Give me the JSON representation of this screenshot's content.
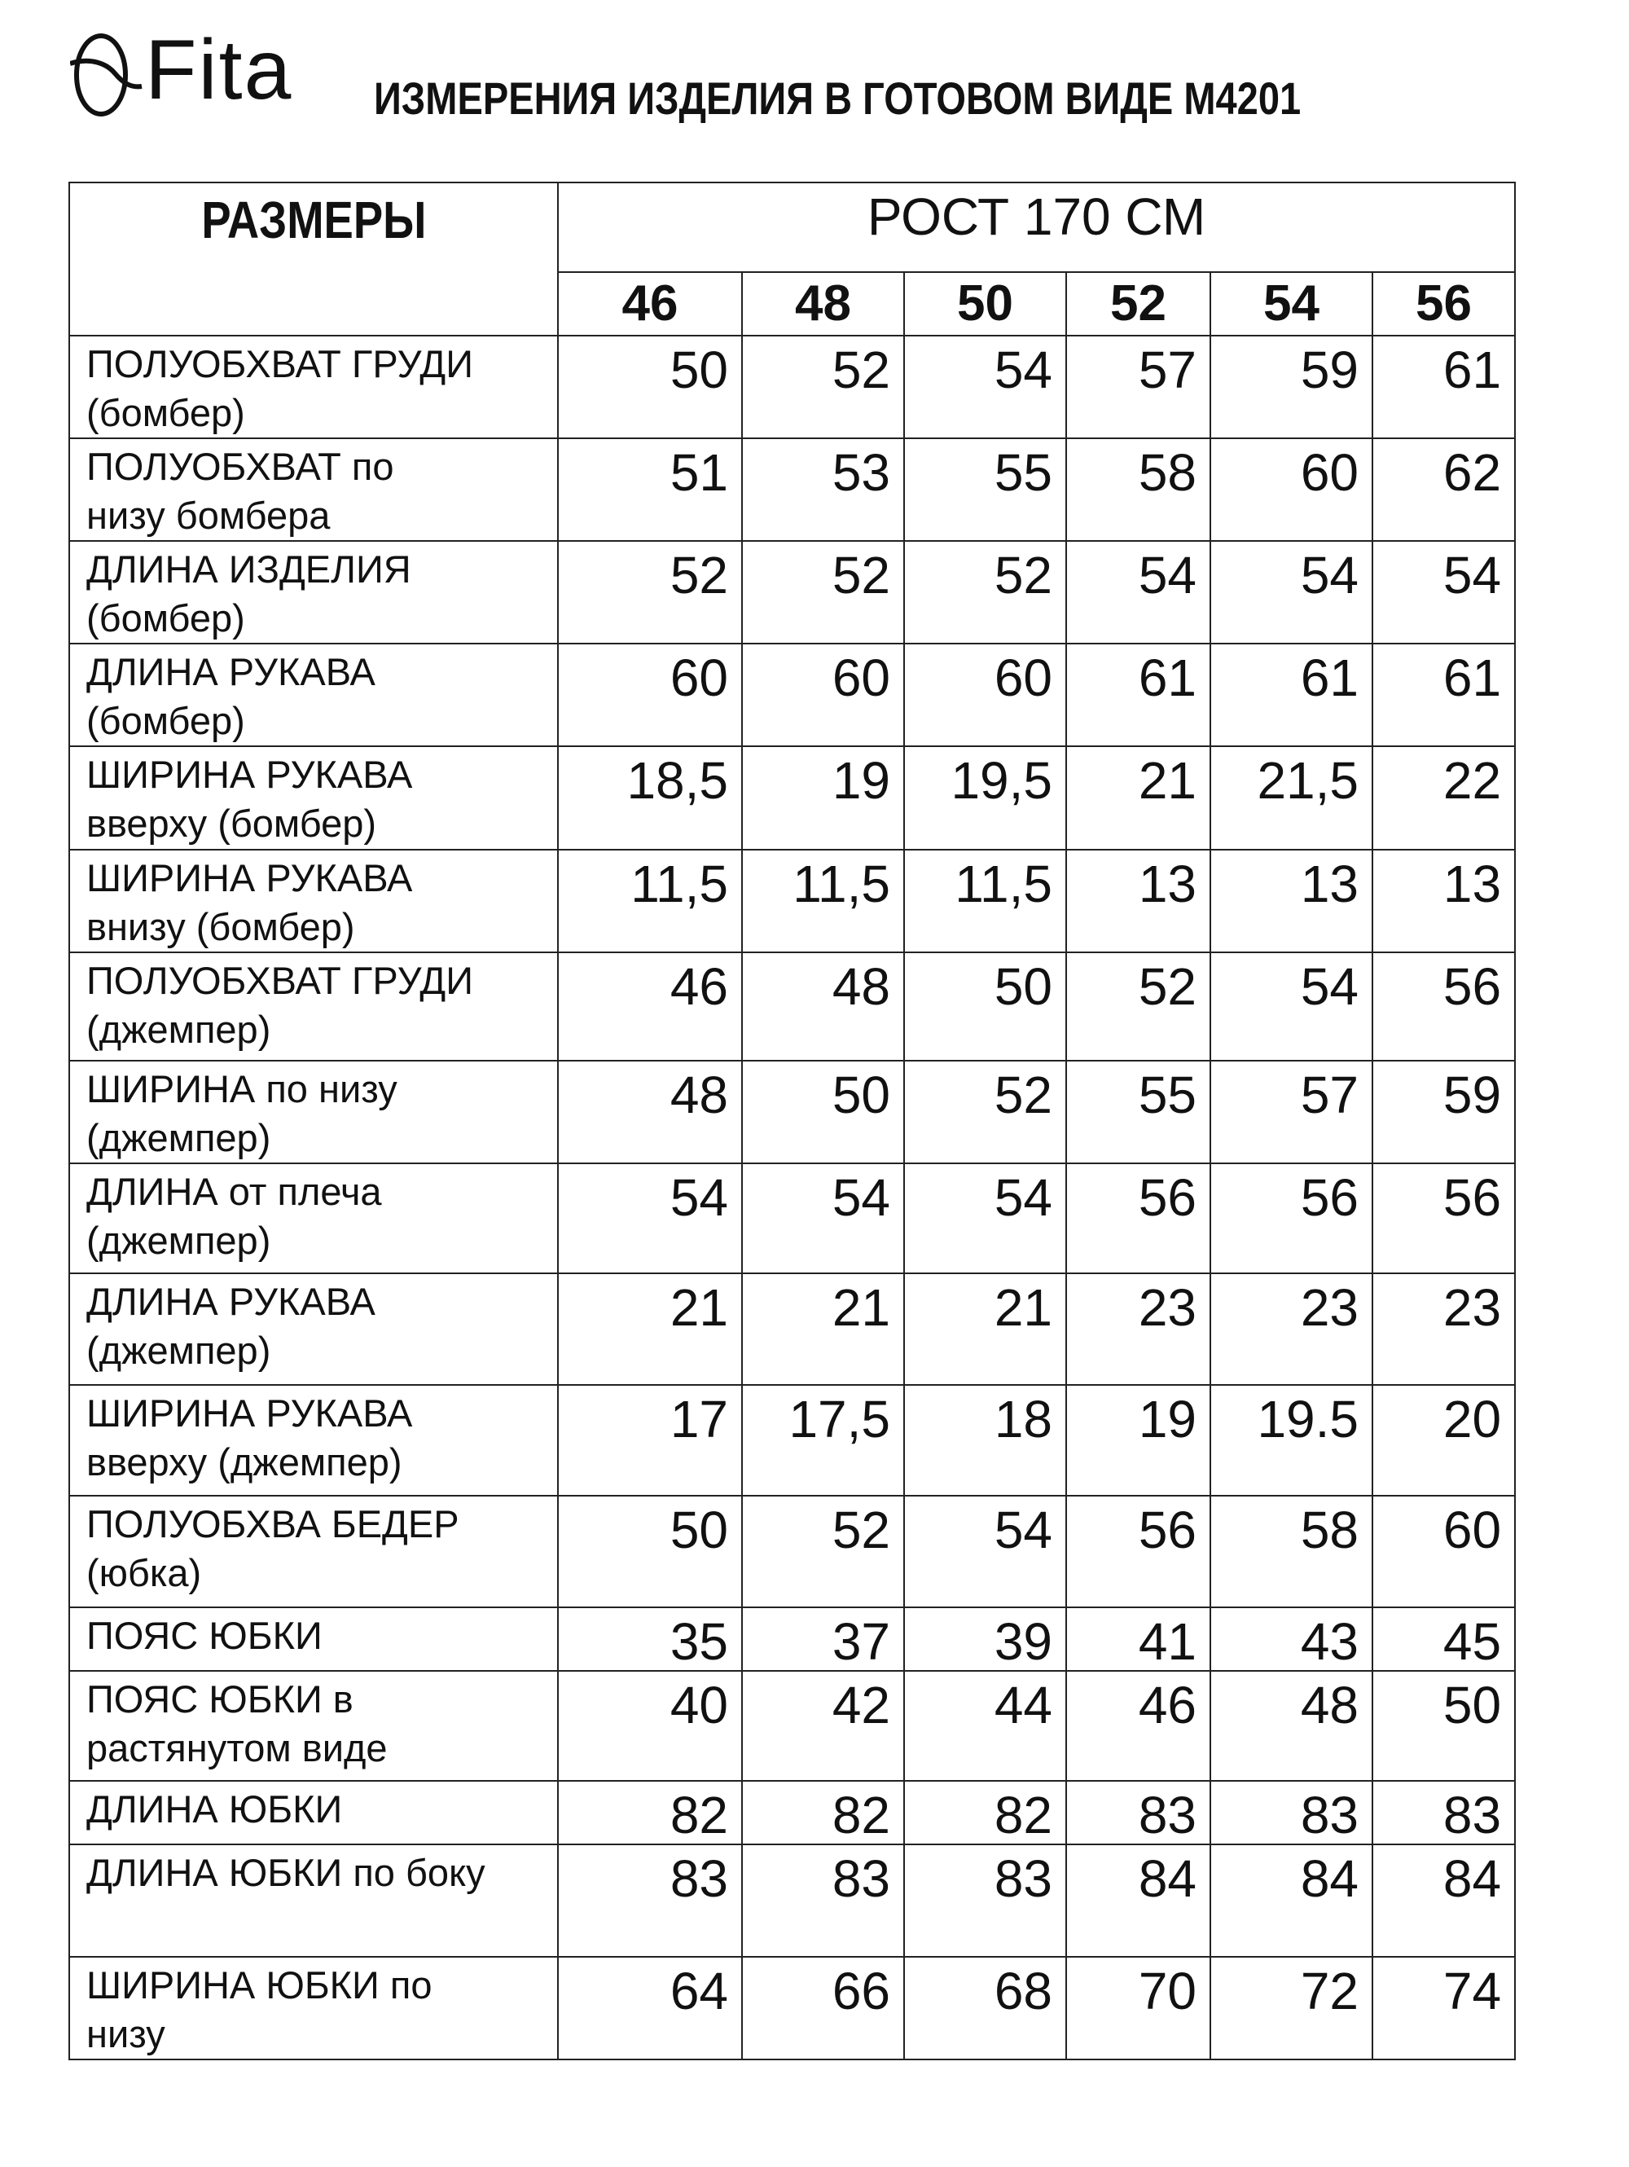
{
  "logo": {
    "text": "Fita"
  },
  "title": "ИЗМЕРЕНИЯ ИЗДЕЛИЯ В ГОТОВОМ ВИДЕ М4201",
  "table": {
    "sizes_header": "РАЗМЕРЫ",
    "height_header": "РОСТ 170 СМ",
    "sizes": [
      "46",
      "48",
      "50",
      "52",
      "54",
      "56"
    ],
    "rows": [
      {
        "label1": "ПОЛУОБХВАТ ГРУДИ",
        "label2": "(бомбер)",
        "values": [
          "50",
          "52",
          "54",
          "57",
          "59",
          "61"
        ]
      },
      {
        "label1": "ПОЛУОБХВАТ по",
        "label2": "низу бомбера",
        "values": [
          "51",
          "53",
          "55",
          "58",
          "60",
          "62"
        ]
      },
      {
        "label1": "ДЛИНА ИЗДЕЛИЯ",
        "label2": "(бомбер)",
        "values": [
          "52",
          "52",
          "52",
          "54",
          "54",
          "54"
        ]
      },
      {
        "label1": "ДЛИНА РУКАВА",
        "label2": "(бомбер)",
        "values": [
          "60",
          "60",
          "60",
          "61",
          "61",
          "61"
        ]
      },
      {
        "label1": "ШИРИНА РУКАВА",
        "label2": "вверху (бомбер)",
        "values": [
          "18,5",
          "19",
          "19,5",
          "21",
          "21,5",
          "22"
        ]
      },
      {
        "label1": "ШИРИНА РУКАВА",
        "label2": "внизу (бомбер)",
        "values": [
          "11,5",
          "11,5",
          "11,5",
          "13",
          "13",
          "13"
        ]
      },
      {
        "label1": "ПОЛУОБХВАТ ГРУДИ",
        "label2": "(джемпер)",
        "values": [
          "46",
          "48",
          "50",
          "52",
          "54",
          "56"
        ]
      },
      {
        "label1": "ШИРИНА по низу",
        "label2": "(джемпер)",
        "values": [
          "48",
          "50",
          "52",
          "55",
          "57",
          "59"
        ]
      },
      {
        "label1": "ДЛИНА от плеча",
        "label2": "(джемпер)",
        "values": [
          "54",
          "54",
          "54",
          "56",
          "56",
          "56"
        ]
      },
      {
        "label1": "ДЛИНА РУКАВА",
        "label2": "(джемпер)",
        "values": [
          "21",
          "21",
          "21",
          "23",
          "23",
          "23"
        ]
      },
      {
        "label1": "ШИРИНА РУКАВА",
        "label2": "вверху (джемпер)",
        "values": [
          "17",
          "17,5",
          "18",
          "19",
          "19.5",
          "20"
        ]
      },
      {
        "label1": "ПОЛУОБХВА БЕДЕР",
        "label2": "(юбка)",
        "values": [
          "50",
          "52",
          "54",
          "56",
          "58",
          "60"
        ]
      },
      {
        "label1": "ПОЯС ЮБКИ",
        "label2": "",
        "values": [
          "35",
          "37",
          "39",
          "41",
          "43",
          "45"
        ]
      },
      {
        "label1": "ПОЯС ЮБКИ в",
        "label2": "растянутом виде",
        "values": [
          "40",
          "42",
          "44",
          "46",
          "48",
          "50"
        ]
      },
      {
        "label1": "ДЛИНА ЮБКИ",
        "label2": "",
        "values": [
          "82",
          "82",
          "82",
          "83",
          "83",
          "83"
        ]
      },
      {
        "label1": "ДЛИНА ЮБКИ по боку",
        "label2": "",
        "values": [
          "83",
          "83",
          "83",
          "84",
          "84",
          "84"
        ]
      },
      {
        "label1": "ШИРИНА ЮБКИ по",
        "label2": "низу",
        "values": [
          "64",
          "66",
          "68",
          "70",
          "72",
          "74"
        ]
      }
    ]
  }
}
